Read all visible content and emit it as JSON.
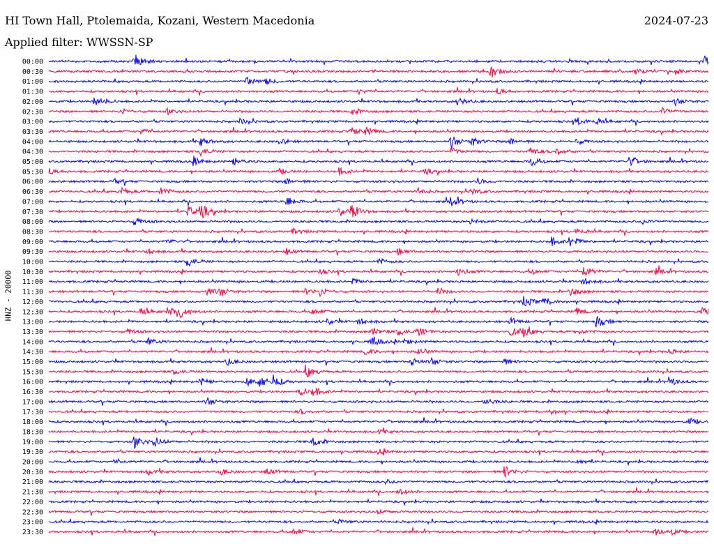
{
  "header": {
    "station": "HI Town Hall, Ptolemaida, Kozani, Western Macedonia",
    "date": "2024-07-23",
    "filter": "Applied filter: WWSSN-SP"
  },
  "chart_data": {
    "type": "line",
    "title": "HI Town Hall, Ptolemaida, Kozani, Western Macedonia",
    "date": "2024-07-23",
    "filter": "WWSSN-SP",
    "ylabel": "HNZ - 20000",
    "xlabel": "",
    "rows": [
      {
        "time": "00:00",
        "color": "#0000ff",
        "events": [
          [
            0.13,
            1.0
          ],
          [
            0.995,
            0.8
          ]
        ]
      },
      {
        "time": "00:30",
        "color": "#ff0040",
        "events": [
          [
            0.67,
            1.0
          ],
          [
            0.89,
            0.3
          ],
          [
            0.95,
            0.4
          ]
        ]
      },
      {
        "time": "01:00",
        "color": "#0000ff",
        "events": [
          [
            0.3,
            0.7
          ],
          [
            0.33,
            0.4
          ]
        ]
      },
      {
        "time": "01:30",
        "color": "#ff0040",
        "events": [
          [
            0.47,
            0.3
          ],
          [
            0.68,
            0.4
          ]
        ]
      },
      {
        "time": "02:00",
        "color": "#0000ff",
        "events": [
          [
            0.07,
            0.9
          ],
          [
            0.62,
            0.5
          ],
          [
            0.95,
            0.5
          ]
        ]
      },
      {
        "time": "02:30",
        "color": "#ff0040",
        "events": [
          [
            0.11,
            0.4
          ],
          [
            0.18,
            0.4
          ],
          [
            0.46,
            0.5
          ],
          [
            0.93,
            0.5
          ]
        ]
      },
      {
        "time": "03:00",
        "color": "#0000ff",
        "events": [
          [
            0.29,
            0.4
          ],
          [
            0.8,
            0.6
          ],
          [
            0.83,
            0.4
          ]
        ]
      },
      {
        "time": "03:30",
        "color": "#ff0040",
        "events": [
          [
            0.14,
            0.4
          ],
          [
            0.46,
            0.6
          ],
          [
            0.48,
            0.5
          ]
        ]
      },
      {
        "time": "04:00",
        "color": "#0000ff",
        "events": [
          [
            0.23,
            0.6
          ],
          [
            0.35,
            0.4
          ],
          [
            0.61,
            0.9
          ],
          [
            0.64,
            0.6
          ],
          [
            0.7,
            0.5
          ],
          [
            0.8,
            0.4
          ]
        ]
      },
      {
        "time": "04:30",
        "color": "#ff0040",
        "events": [
          [
            0.23,
            0.6
          ],
          [
            0.61,
            0.5
          ],
          [
            0.73,
            0.6
          ],
          [
            0.77,
            0.5
          ]
        ]
      },
      {
        "time": "05:00",
        "color": "#0000ff",
        "events": [
          [
            0.22,
            0.5
          ],
          [
            0.28,
            0.5
          ],
          [
            0.73,
            0.7
          ],
          [
            0.88,
            0.7
          ]
        ]
      },
      {
        "time": "05:30",
        "color": "#ff0040",
        "events": [
          [
            0.0,
            0.4
          ],
          [
            0.35,
            0.4
          ],
          [
            0.44,
            0.5
          ],
          [
            0.57,
            0.4
          ]
        ]
      },
      {
        "time": "06:00",
        "color": "#0000ff",
        "events": [
          [
            0.1,
            0.3
          ],
          [
            0.36,
            0.5
          ],
          [
            0.65,
            0.4
          ]
        ]
      },
      {
        "time": "06:30",
        "color": "#ff0040",
        "events": [
          [
            0.11,
            0.5
          ],
          [
            0.17,
            0.6
          ],
          [
            0.56,
            0.5
          ],
          [
            0.64,
            0.5
          ]
        ]
      },
      {
        "time": "07:00",
        "color": "#0000ff",
        "events": [
          [
            0.36,
            0.7
          ],
          [
            0.61,
            0.7
          ]
        ]
      },
      {
        "time": "07:30",
        "color": "#ff0040",
        "events": [
          [
            0.21,
            0.8
          ],
          [
            0.23,
            1.0
          ],
          [
            0.44,
            0.7
          ],
          [
            0.46,
            0.9
          ]
        ]
      },
      {
        "time": "08:00",
        "color": "#0000ff",
        "events": [
          [
            0.13,
            0.6
          ],
          [
            0.64,
            0.4
          ],
          [
            0.9,
            0.4
          ]
        ]
      },
      {
        "time": "08:30",
        "color": "#ff0040",
        "events": [
          [
            0.37,
            0.4
          ],
          [
            0.8,
            0.4
          ]
        ]
      },
      {
        "time": "09:00",
        "color": "#0000ff",
        "events": [
          [
            0.18,
            0.3
          ],
          [
            0.76,
            0.7
          ],
          [
            0.79,
            0.8
          ]
        ]
      },
      {
        "time": "09:30",
        "color": "#ff0040",
        "events": [
          [
            0.15,
            0.4
          ],
          [
            0.36,
            0.4
          ],
          [
            0.53,
            0.5
          ]
        ]
      },
      {
        "time": "10:00",
        "color": "#0000ff",
        "events": [
          [
            0.21,
            0.8
          ],
          [
            0.5,
            0.4
          ]
        ]
      },
      {
        "time": "10:30",
        "color": "#ff0040",
        "events": [
          [
            0.41,
            0.4
          ],
          [
            0.62,
            0.6
          ],
          [
            0.73,
            0.4
          ],
          [
            0.81,
            0.9
          ],
          [
            0.92,
            0.4
          ]
        ]
      },
      {
        "time": "11:00",
        "color": "#0000ff",
        "events": [
          [
            0.46,
            0.4
          ],
          [
            0.81,
            0.5
          ]
        ]
      },
      {
        "time": "11:30",
        "color": "#ff0040",
        "events": [
          [
            0.24,
            0.6
          ],
          [
            0.26,
            0.6
          ],
          [
            0.39,
            0.5
          ],
          [
            0.41,
            0.6
          ],
          [
            0.59,
            0.5
          ],
          [
            0.79,
            0.7
          ]
        ]
      },
      {
        "time": "12:00",
        "color": "#0000ff",
        "events": [
          [
            0.72,
            0.8
          ],
          [
            0.75,
            0.6
          ]
        ]
      },
      {
        "time": "12:30",
        "color": "#ff0040",
        "events": [
          [
            0.14,
            0.6
          ],
          [
            0.18,
            0.6
          ],
          [
            0.2,
            0.8
          ],
          [
            0.4,
            0.5
          ],
          [
            0.8,
            0.5
          ],
          [
            0.99,
            0.5
          ]
        ]
      },
      {
        "time": "13:00",
        "color": "#0000ff",
        "events": [
          [
            0.42,
            0.5
          ],
          [
            0.47,
            0.5
          ],
          [
            0.7,
            0.5
          ],
          [
            0.83,
            0.9
          ]
        ]
      },
      {
        "time": "13:30",
        "color": "#ff0040",
        "events": [
          [
            0.12,
            0.4
          ],
          [
            0.49,
            0.6
          ],
          [
            0.53,
            0.6
          ],
          [
            0.56,
            0.6
          ],
          [
            0.7,
            0.6
          ],
          [
            0.72,
            0.7
          ],
          [
            0.8,
            0.4
          ]
        ]
      },
      {
        "time": "14:00",
        "color": "#0000ff",
        "events": [
          [
            0.15,
            0.5
          ],
          [
            0.49,
            0.7
          ],
          [
            0.54,
            0.4
          ]
        ]
      },
      {
        "time": "14:30",
        "color": "#ff0040",
        "events": [
          [
            0.48,
            0.5
          ],
          [
            0.56,
            0.4
          ],
          [
            0.94,
            0.4
          ]
        ]
      },
      {
        "time": "15:00",
        "color": "#0000ff",
        "events": [
          [
            0.27,
            0.5
          ],
          [
            0.55,
            0.6
          ],
          [
            0.58,
            0.5
          ],
          [
            0.69,
            0.4
          ]
        ]
      },
      {
        "time": "15:30",
        "color": "#ff0040",
        "events": [
          [
            0.19,
            0.4
          ],
          [
            0.39,
            0.9
          ]
        ]
      },
      {
        "time": "16:00",
        "color": "#0000ff",
        "events": [
          [
            0.23,
            0.5
          ],
          [
            0.3,
            0.6
          ],
          [
            0.32,
            0.9
          ],
          [
            0.34,
            0.8
          ],
          [
            0.94,
            0.6
          ]
        ]
      },
      {
        "time": "16:30",
        "color": "#ff0040",
        "events": [
          [
            0.38,
            0.6
          ],
          [
            0.4,
            0.7
          ]
        ]
      },
      {
        "time": "17:00",
        "color": "#0000ff",
        "events": [
          [
            0.24,
            0.6
          ],
          [
            0.66,
            0.5
          ]
        ]
      },
      {
        "time": "17:30",
        "color": "#ff0040",
        "events": [
          [
            0.38,
            0.4
          ],
          [
            0.76,
            0.4
          ]
        ]
      },
      {
        "time": "18:00",
        "color": "#0000ff",
        "events": [
          [
            0.97,
            0.5
          ]
        ]
      },
      {
        "time": "18:30",
        "color": "#ff0040",
        "events": [
          [
            0.5,
            0.3
          ]
        ]
      },
      {
        "time": "19:00",
        "color": "#0000ff",
        "events": [
          [
            0.13,
            0.9
          ],
          [
            0.16,
            0.7
          ],
          [
            0.4,
            0.7
          ]
        ]
      },
      {
        "time": "19:30",
        "color": "#ff0040",
        "events": [
          [
            0.5,
            0.3
          ]
        ]
      },
      {
        "time": "20:00",
        "color": "#0000ff",
        "events": [
          [
            0.1,
            0.3
          ],
          [
            0.8,
            0.4
          ]
        ]
      },
      {
        "time": "20:30",
        "color": "#ff0040",
        "events": [
          [
            0.15,
            0.4
          ],
          [
            0.26,
            0.5
          ],
          [
            0.33,
            0.5
          ],
          [
            0.69,
            0.9
          ]
        ]
      },
      {
        "time": "21:00",
        "color": "#0000ff",
        "events": [
          [
            0.51,
            0.3
          ]
        ]
      },
      {
        "time": "21:30",
        "color": "#ff0040",
        "events": [
          [
            0.53,
            0.5
          ]
        ]
      },
      {
        "time": "22:00",
        "color": "#0000ff",
        "events": []
      },
      {
        "time": "22:30",
        "color": "#ff0040",
        "events": [
          [
            0.5,
            0.3
          ]
        ]
      },
      {
        "time": "23:00",
        "color": "#0000ff",
        "events": [
          [
            0.44,
            0.3
          ]
        ]
      },
      {
        "time": "23:30",
        "color": "#ff0040",
        "events": [
          [
            0.37,
            0.5
          ],
          [
            0.92,
            0.5
          ],
          [
            0.94,
            0.5
          ]
        ]
      }
    ]
  }
}
